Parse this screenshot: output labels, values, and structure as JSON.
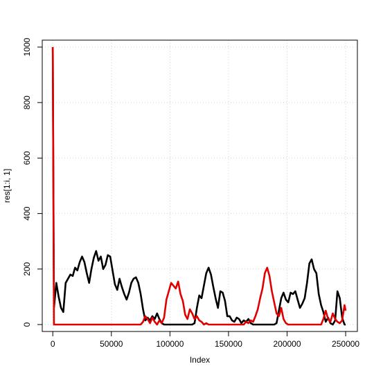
{
  "chart_data": {
    "type": "line",
    "title": "",
    "xlabel": "Index",
    "ylabel": "res[1:i, 1]",
    "xlim": [
      -9000,
      260000
    ],
    "ylim": [
      -25,
      1025
    ],
    "xticks": [
      0,
      50000,
      100000,
      150000,
      200000,
      250000
    ],
    "yticks": [
      0,
      200,
      400,
      600,
      800,
      1000
    ],
    "grid": true,
    "series": [
      {
        "color": "#000000",
        "x": [
          0,
          1000,
          3000,
          5000,
          7000,
          9000,
          11000,
          13000,
          15000,
          17000,
          19000,
          21000,
          23000,
          25000,
          27000,
          29000,
          31000,
          33000,
          35000,
          37000,
          39000,
          41000,
          43000,
          45000,
          47000,
          49000,
          51000,
          53000,
          55000,
          57000,
          59000,
          61000,
          63000,
          65000,
          67000,
          69000,
          71000,
          73000,
          75000,
          77000,
          79000,
          81000,
          83000,
          85000,
          87000,
          89000,
          91000,
          93000,
          95000,
          97000,
          99000,
          101000,
          103000,
          105000,
          107000,
          109000,
          111000,
          113000,
          115000,
          117000,
          119000,
          121000,
          123000,
          125000,
          127000,
          129000,
          131000,
          133000,
          135000,
          137000,
          139000,
          141000,
          143000,
          145000,
          147000,
          149000,
          151000,
          153000,
          155000,
          157000,
          159000,
          161000,
          163000,
          165000,
          167000,
          169000,
          171000,
          173000,
          175000,
          177000,
          179000,
          181000,
          183000,
          185000,
          187000,
          189000,
          191000,
          193000,
          195000,
          197000,
          199000,
          201000,
          203000,
          205000,
          207000,
          209000,
          211000,
          213000,
          215000,
          217000,
          219000,
          221000,
          223000,
          225000,
          227000,
          229000,
          231000,
          233000,
          235000,
          237000,
          239000,
          241000,
          243000,
          245000,
          247000,
          249000,
          250000
        ],
        "y": [
          1000,
          60,
          150,
          100,
          60,
          45,
          150,
          165,
          180,
          175,
          205,
          195,
          225,
          245,
          225,
          185,
          150,
          200,
          240,
          265,
          230,
          245,
          200,
          215,
          250,
          245,
          195,
          145,
          125,
          165,
          135,
          110,
          90,
          115,
          150,
          165,
          170,
          150,
          110,
          55,
          15,
          25,
          15,
          30,
          20,
          40,
          20,
          5,
          0,
          0,
          0,
          0,
          0,
          0,
          0,
          0,
          0,
          0,
          0,
          0,
          0,
          5,
          60,
          105,
          95,
          140,
          185,
          205,
          180,
          135,
          95,
          60,
          120,
          115,
          85,
          30,
          30,
          15,
          10,
          25,
          20,
          5,
          15,
          10,
          20,
          5,
          0,
          0,
          0,
          0,
          0,
          0,
          0,
          0,
          0,
          0,
          5,
          50,
          95,
          115,
          90,
          80,
          115,
          110,
          120,
          90,
          60,
          75,
          95,
          150,
          220,
          235,
          200,
          185,
          110,
          70,
          45,
          10,
          25,
          5,
          0,
          15,
          120,
          95,
          25,
          0,
          0
        ]
      },
      {
        "color": "#e00000",
        "x": [
          0,
          1000,
          75000,
          77000,
          79000,
          81000,
          83000,
          85000,
          87000,
          89000,
          91000,
          93000,
          95000,
          97000,
          99000,
          101000,
          103000,
          105000,
          107000,
          109000,
          111000,
          113000,
          115000,
          117000,
          119000,
          121000,
          123000,
          125000,
          127000,
          129000,
          131000,
          133000,
          163000,
          165000,
          167000,
          169000,
          171000,
          173000,
          175000,
          177000,
          179000,
          181000,
          183000,
          185000,
          187000,
          189000,
          191000,
          193000,
          195000,
          197000,
          199000,
          201000,
          229000,
          231000,
          233000,
          235000,
          237000,
          239000,
          241000,
          243000,
          245000,
          247000,
          249000,
          250000
        ],
        "y": [
          1000,
          0,
          0,
          10,
          30,
          20,
          5,
          25,
          10,
          0,
          15,
          5,
          25,
          90,
          120,
          150,
          140,
          130,
          155,
          110,
          85,
          35,
          20,
          55,
          40,
          20,
          30,
          15,
          10,
          0,
          5,
          0,
          0,
          10,
          5,
          15,
          10,
          30,
          55,
          95,
          130,
          185,
          205,
          175,
          120,
          80,
          40,
          30,
          60,
          20,
          5,
          0,
          0,
          20,
          50,
          20,
          10,
          40,
          20,
          10,
          5,
          15,
          70,
          50
        ]
      }
    ]
  }
}
